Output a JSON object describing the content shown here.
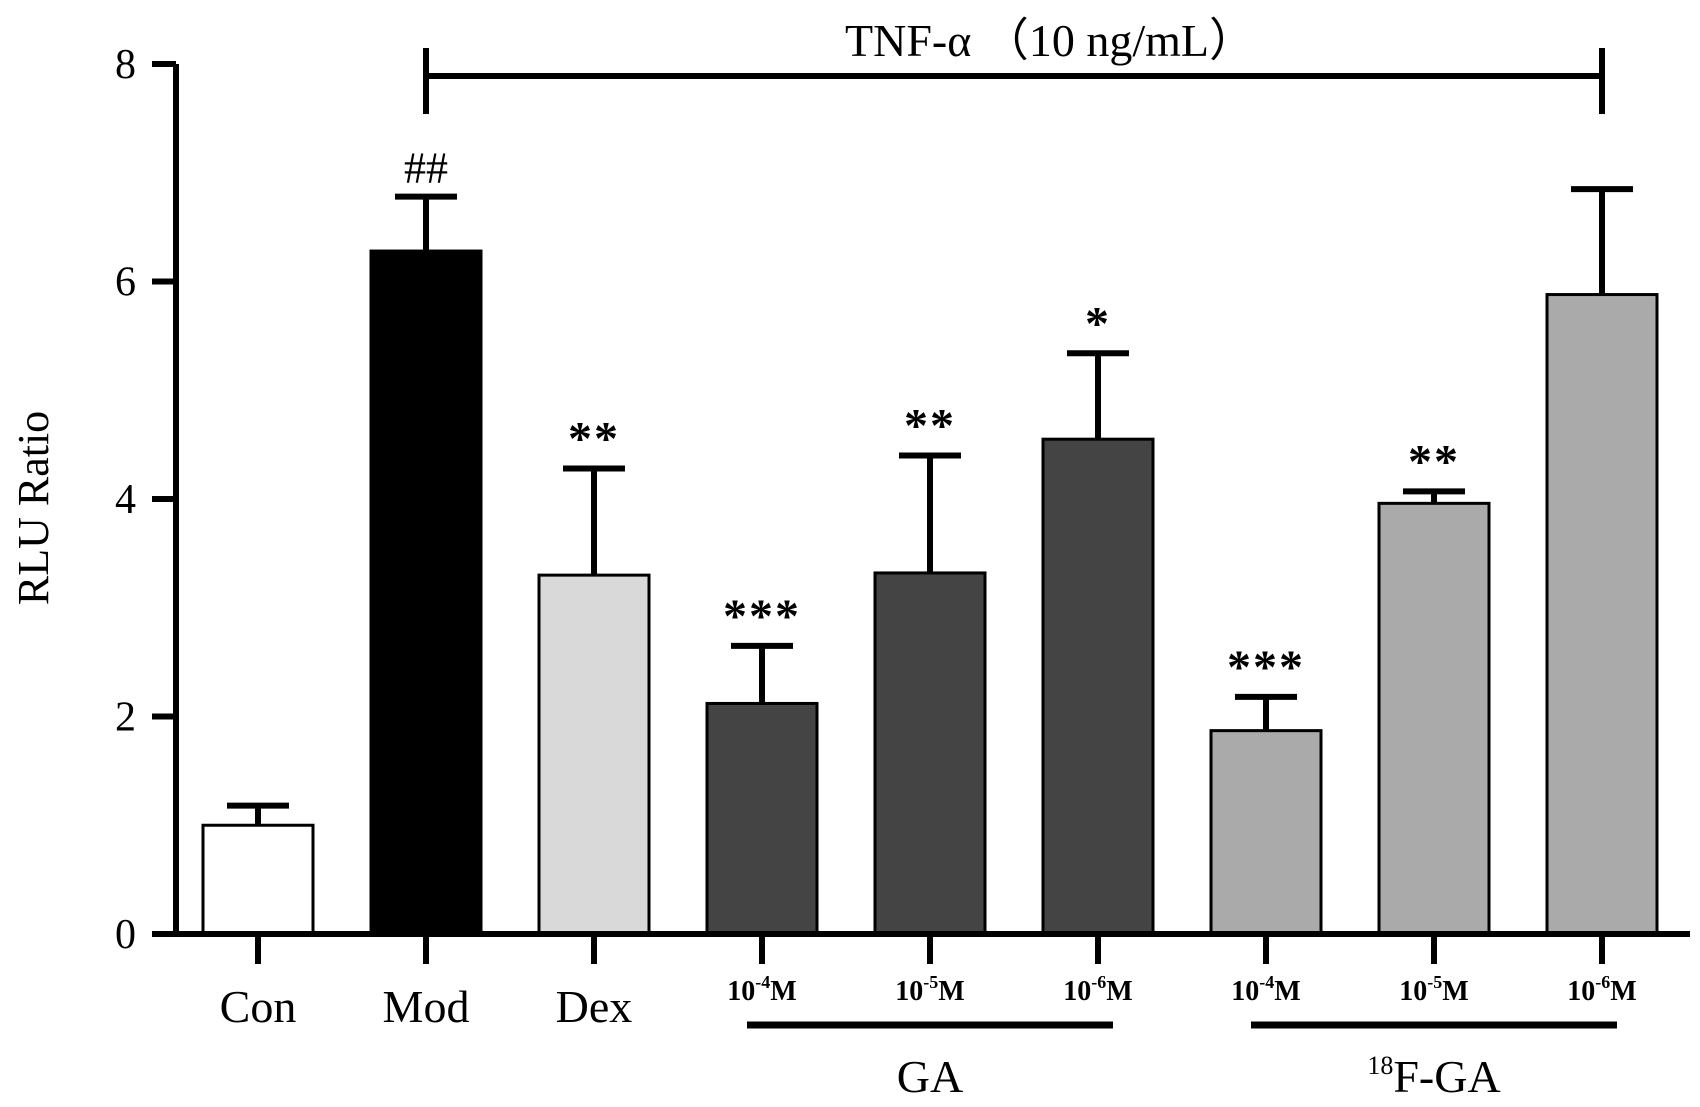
{
  "chart_data": {
    "type": "bar",
    "title": "TNF-α （10 ng/mL）",
    "ylabel": "RLU Ratio",
    "xlabel": "",
    "ylim": [
      0,
      8
    ],
    "yticks": [
      "0",
      "2",
      "4",
      "6",
      "8"
    ],
    "categories": [
      "Con",
      "Mod",
      "Dex",
      "10-4M",
      "10-5M",
      "10-6M",
      "10-4M",
      "10-5M",
      "10-6M"
    ],
    "tick_labels": [
      {
        "base": "Con",
        "sup": "",
        "unit": ""
      },
      {
        "base": "Mod",
        "sup": "",
        "unit": ""
      },
      {
        "base": "Dex",
        "sup": "",
        "unit": ""
      },
      {
        "base": "10",
        "sup": "-4",
        "unit": "M"
      },
      {
        "base": "10",
        "sup": "-5",
        "unit": "M"
      },
      {
        "base": "10",
        "sup": "-6",
        "unit": "M"
      },
      {
        "base": "10",
        "sup": "-4",
        "unit": "M"
      },
      {
        "base": "10",
        "sup": "-5",
        "unit": "M"
      },
      {
        "base": "10",
        "sup": "-6",
        "unit": "M"
      }
    ],
    "values": [
      1.0,
      6.28,
      3.3,
      2.12,
      3.32,
      4.55,
      1.87,
      3.96,
      5.88
    ],
    "errors": [
      0.18,
      0.5,
      0.98,
      0.53,
      1.08,
      0.79,
      0.31,
      0.11,
      0.97
    ],
    "significance": [
      "",
      "##",
      "**",
      "***",
      "**",
      "*",
      "***",
      "**",
      ""
    ],
    "colors": [
      "#ffffff",
      "#000000",
      "#d9d9d9",
      "#444444",
      "#444444",
      "#444444",
      "#aaaaaa",
      "#aaaaaa",
      "#aaaaaa"
    ],
    "groups": [
      {
        "label": "GA",
        "sup": "",
        "from": 3,
        "to": 5
      },
      {
        "label": "F-GA",
        "sup": "18",
        "from": 6,
        "to": 8
      }
    ],
    "treatment_bracket": {
      "from": 1,
      "to": 8
    }
  }
}
